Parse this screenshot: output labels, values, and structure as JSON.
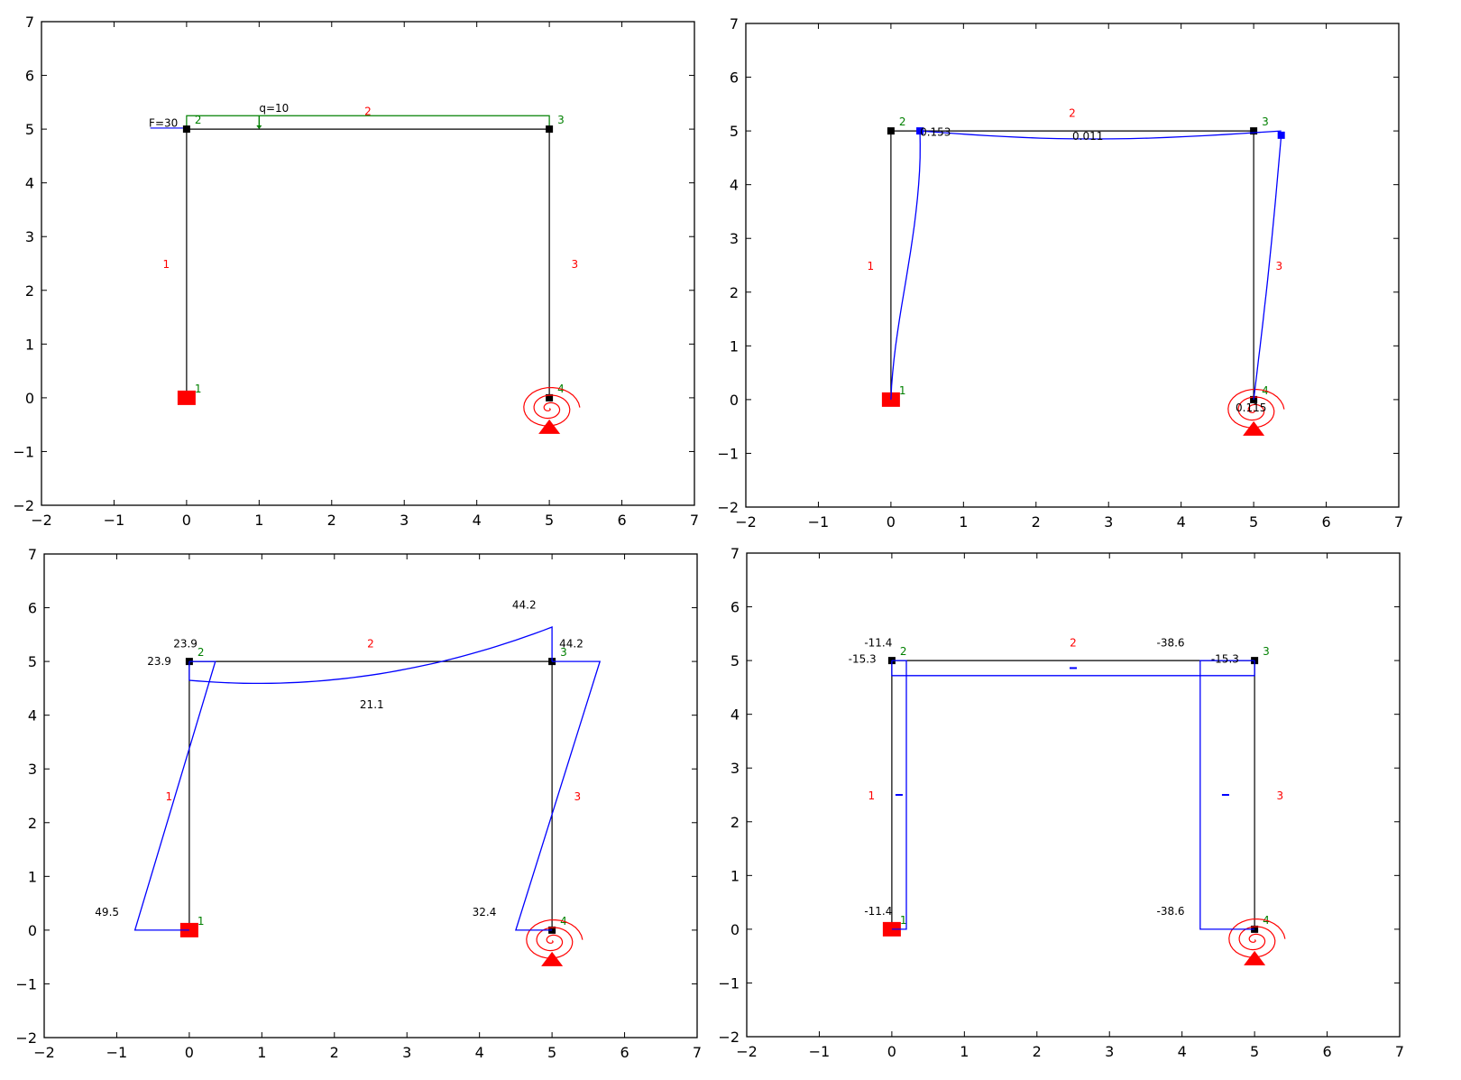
{
  "colors": {
    "frame": "#000000",
    "member_label": "#ff0000",
    "node_label": "#008000",
    "load": "#008000",
    "result": "#0000ff",
    "support": "#ff0000",
    "text": "#000000"
  },
  "axes": {
    "xlim": [
      -2,
      7
    ],
    "ylim": [
      -2,
      7
    ],
    "xticks": [
      "−2",
      "−1",
      "0",
      "1",
      "2",
      "3",
      "4",
      "5",
      "6",
      "7"
    ],
    "yticks": [
      "−2",
      "−1",
      "0",
      "1",
      "2",
      "3",
      "4",
      "5",
      "6",
      "7"
    ],
    "grid": false
  },
  "structure": {
    "nodes": [
      {
        "id": "1",
        "x": 0,
        "y": 0,
        "support": "fixed"
      },
      {
        "id": "2",
        "x": 0,
        "y": 5
      },
      {
        "id": "3",
        "x": 5,
        "y": 5
      },
      {
        "id": "4",
        "x": 5,
        "y": 0,
        "support": "pinned with rotational spring"
      }
    ],
    "members": [
      {
        "id": "1",
        "from": [
          0,
          0
        ],
        "to": [
          0,
          5
        ]
      },
      {
        "id": "2",
        "from": [
          0,
          5
        ],
        "to": [
          5,
          5
        ]
      },
      {
        "id": "3",
        "from": [
          5,
          5
        ],
        "to": [
          5,
          0
        ]
      }
    ]
  },
  "panels": [
    {
      "id": "structure",
      "loads": {
        "point_label": "F=30",
        "distributed_label": "q=10"
      }
    },
    {
      "id": "displacements",
      "labels": [
        {
          "text": "0.153",
          "x": 0.4,
          "y": 4.98
        },
        {
          "text": "0.011",
          "x": 2.5,
          "y": 4.9
        },
        {
          "text": "0.115",
          "x": 4.75,
          "y": -0.15
        }
      ]
    },
    {
      "id": "bending_moment",
      "labels": [
        {
          "text": "23.9",
          "x": -0.22,
          "y": 5.33
        },
        {
          "text": "23.9",
          "x": -0.58,
          "y": 5.0
        },
        {
          "text": "44.2",
          "x": 4.45,
          "y": 6.05
        },
        {
          "text": "44.2",
          "x": 5.1,
          "y": 5.33
        },
        {
          "text": "21.1",
          "x": 2.35,
          "y": 4.2
        },
        {
          "text": "49.5",
          "x": -1.3,
          "y": 0.33
        },
        {
          "text": "32.4",
          "x": 3.9,
          "y": 0.33
        }
      ]
    },
    {
      "id": "normal_force",
      "labels": [
        {
          "text": "-11.4",
          "x": -0.38,
          "y": 5.33
        },
        {
          "text": "-15.3",
          "x": -0.6,
          "y": 5.03
        },
        {
          "text": "-38.6",
          "x": 3.65,
          "y": 5.33
        },
        {
          "text": "-15.3",
          "x": 4.4,
          "y": 5.03
        },
        {
          "text": "-11.4",
          "x": -0.38,
          "y": 0.33
        },
        {
          "text": "-38.6",
          "x": 3.65,
          "y": 0.33
        }
      ]
    }
  ]
}
